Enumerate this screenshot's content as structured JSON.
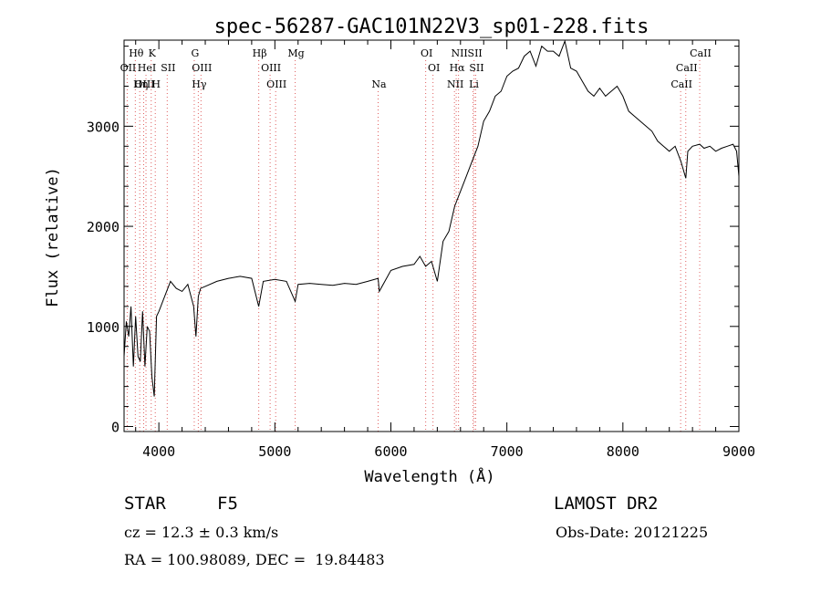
{
  "chart_data": {
    "type": "line",
    "title": "spec-56287-GAC101N22V3_sp01-228.fits",
    "xlabel": "Wavelength (Å)",
    "ylabel": "Flux (relative)",
    "xlim": [
      3700,
      9000
    ],
    "ylim": [
      -50,
      3860
    ],
    "xticks": [
      4000,
      5000,
      6000,
      7000,
      8000,
      9000
    ],
    "yticks": [
      0,
      1000,
      2000,
      3000
    ],
    "grid": false,
    "series": [
      {
        "x": [
          3700,
          3720,
          3740,
          3760,
          3780,
          3800,
          3820,
          3840,
          3860,
          3880,
          3900,
          3920,
          3940,
          3960,
          3980,
          4000,
          4050,
          4100,
          4150,
          4200,
          4250,
          4300,
          4320,
          4340,
          4360,
          4400,
          4500,
          4600,
          4700,
          4800,
          4861,
          4900,
          5000,
          5100,
          5175,
          5200,
          5300,
          5400,
          5500,
          5600,
          5700,
          5800,
          5890,
          5900,
          6000,
          6100,
          6200,
          6250,
          6300,
          6350,
          6400,
          6450,
          6500,
          6550,
          6600,
          6650,
          6700,
          6750,
          6800,
          6850,
          6900,
          6950,
          7000,
          7050,
          7100,
          7150,
          7200,
          7250,
          7300,
          7350,
          7400,
          7450,
          7500,
          7550,
          7600,
          7650,
          7700,
          7750,
          7800,
          7850,
          7900,
          7950,
          8000,
          8050,
          8100,
          8150,
          8200,
          8250,
          8300,
          8350,
          8400,
          8450,
          8500,
          8542,
          8560,
          8600,
          8662,
          8700,
          8750,
          8800,
          8850,
          8900,
          8950,
          8980,
          9000
        ],
        "y": [
          700,
          1050,
          900,
          1200,
          600,
          1100,
          700,
          650,
          1150,
          600,
          1000,
          950,
          500,
          300,
          1100,
          1150,
          1300,
          1450,
          1380,
          1350,
          1420,
          1200,
          900,
          1300,
          1380,
          1400,
          1450,
          1480,
          1500,
          1480,
          1200,
          1450,
          1470,
          1450,
          1250,
          1420,
          1430,
          1420,
          1410,
          1430,
          1420,
          1450,
          1480,
          1350,
          1560,
          1600,
          1620,
          1700,
          1600,
          1650,
          1450,
          1850,
          1950,
          2200,
          2350,
          2500,
          2650,
          2800,
          3050,
          3150,
          3300,
          3350,
          3500,
          3550,
          3580,
          3700,
          3750,
          3600,
          3800,
          3750,
          3750,
          3700,
          3850,
          3580,
          3550,
          3450,
          3350,
          3300,
          3380,
          3300,
          3350,
          3400,
          3300,
          3150,
          3100,
          3050,
          3000,
          2950,
          2850,
          2800,
          2750,
          2800,
          2650,
          2480,
          2750,
          2800,
          2820,
          2780,
          2800,
          2750,
          2780,
          2800,
          2820,
          2750,
          2500
        ]
      }
    ],
    "lines": [
      {
        "label": "Hθ",
        "x": 3797,
        "row": 0
      },
      {
        "label": "K",
        "x": 3934,
        "row": 0
      },
      {
        "label": "G",
        "x": 4305,
        "row": 0
      },
      {
        "label": "Hβ",
        "x": 4861,
        "row": 0
      },
      {
        "label": "Mg",
        "x": 5175,
        "row": 0
      },
      {
        "label": "OI",
        "x": 6300,
        "row": 0
      },
      {
        "label": "NII",
        "x": 6583,
        "row": 0
      },
      {
        "label": "SII",
        "x": 6717,
        "row": 0
      },
      {
        "label": "CaII",
        "x": 8662,
        "row": 0
      },
      {
        "label": "OII",
        "x": 3727,
        "row": 1
      },
      {
        "label": "HeI",
        "x": 3889,
        "row": 1
      },
      {
        "label": "SII",
        "x": 4072,
        "row": 1
      },
      {
        "label": "OIII",
        "x": 4363,
        "row": 1
      },
      {
        "label": "OIII",
        "x": 4959,
        "row": 1
      },
      {
        "label": "OI",
        "x": 6363,
        "row": 1
      },
      {
        "label": "Hα",
        "x": 6563,
        "row": 1
      },
      {
        "label": "SII",
        "x": 6731,
        "row": 1
      },
      {
        "label": "CaII",
        "x": 8542,
        "row": 1
      },
      {
        "label": "OIII",
        "x": 3869,
        "row": 2
      },
      {
        "label": "Hη",
        "x": 3835,
        "row": 2
      },
      {
        "label": "H",
        "x": 3969,
        "row": 2
      },
      {
        "label": "Hγ",
        "x": 4340,
        "row": 2
      },
      {
        "label": "OIII",
        "x": 5007,
        "row": 2
      },
      {
        "label": "Na",
        "x": 5890,
        "row": 2
      },
      {
        "label": "NII",
        "x": 6548,
        "row": 2
      },
      {
        "label": "Li",
        "x": 6708,
        "row": 2
      },
      {
        "label": "CaII",
        "x": 8498,
        "row": 2
      }
    ]
  },
  "info": {
    "object_class": "STAR",
    "subclass": "F5",
    "survey": "LAMOST DR2",
    "cz": "cz = 12.3 ± 0.3 km/s",
    "obs_date": "Obs-Date: 20121225",
    "coords": "RA = 100.98089, DEC =  19.84483"
  }
}
